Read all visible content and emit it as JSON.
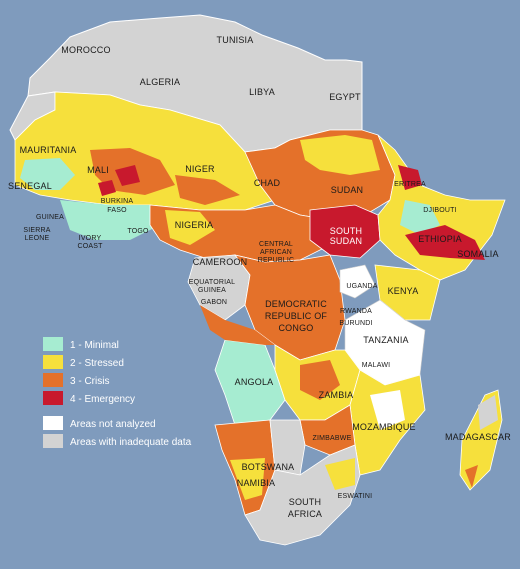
{
  "map": {
    "ocean_color": "#7f9bbd",
    "colors": {
      "minimal": "#a6ecd1",
      "stressed": "#f6e03c",
      "crisis": "#e4712a",
      "emergency": "#c8192d",
      "not_analyzed": "#ffffff",
      "inadequate": "#d3d3d3"
    },
    "countries": {
      "morocco": "MOROCCO",
      "tunisia": "TUNISIA",
      "algeria": "ALGERIA",
      "libya": "LIBYA",
      "egypt": "EGYPT",
      "mauritania": "MAURITANIA",
      "mali": "MALI",
      "niger": "NIGER",
      "chad": "CHAD",
      "sudan": "SUDAN",
      "eritrea": "ERITREA",
      "djibouti": "DJIBOUTI",
      "senegal": "SENEGAL",
      "burkina": "BURKINA",
      "faso": "FASO",
      "guinea": "GUINEA",
      "sierra": "SIERRA",
      "leone": "LEONE",
      "ivory": "IVORY",
      "coast": "COAST",
      "togo": "TOGO",
      "nigeria": "NIGERIA",
      "south": "SOUTH",
      "sudan2": "SUDAN",
      "ethiopia": "ETHIOPIA",
      "somalia": "SOMALIA",
      "central": "CENTRAL",
      "african": "AFRICAN",
      "republic": "REPUBLIC",
      "cameroon": "CAMEROON",
      "equatorial": "EQUATORIAL",
      "guinea2": "GUINEA",
      "gabon": "GABON",
      "democratic": "DEMOCRATIC",
      "republic_of": "REPUBLIC OF",
      "congo": "CONGO",
      "uganda": "UGANDA",
      "kenya": "KENYA",
      "rwanda": "RWANDA",
      "burundi": "BURUNDI",
      "tanzania": "TANZANIA",
      "angola": "ANGOLA",
      "malawi": "MALAWI",
      "zambia": "ZAMBIA",
      "mozambique": "MOZAMBIQUE",
      "zimbabwe": "ZIMBABWE",
      "madagascar": "MADAGASCAR",
      "botswana": "BOTSWANA",
      "namibia": "NAMIBIA",
      "south_africa_1": "SOUTH",
      "south_africa_2": "AFRICA",
      "eswatini": "ESWATINI"
    }
  },
  "legend": {
    "items": [
      {
        "label": "1 - Minimal",
        "color": "#a6ecd1"
      },
      {
        "label": "2 - Stressed",
        "color": "#f6e03c"
      },
      {
        "label": "3 - Crisis",
        "color": "#e4712a"
      },
      {
        "label": "4 - Emergency",
        "color": "#c8192d"
      },
      {
        "label": "Areas not analyzed",
        "color": "#ffffff"
      },
      {
        "label": "Areas with inadequate data",
        "color": "#d3d3d3"
      }
    ]
  }
}
